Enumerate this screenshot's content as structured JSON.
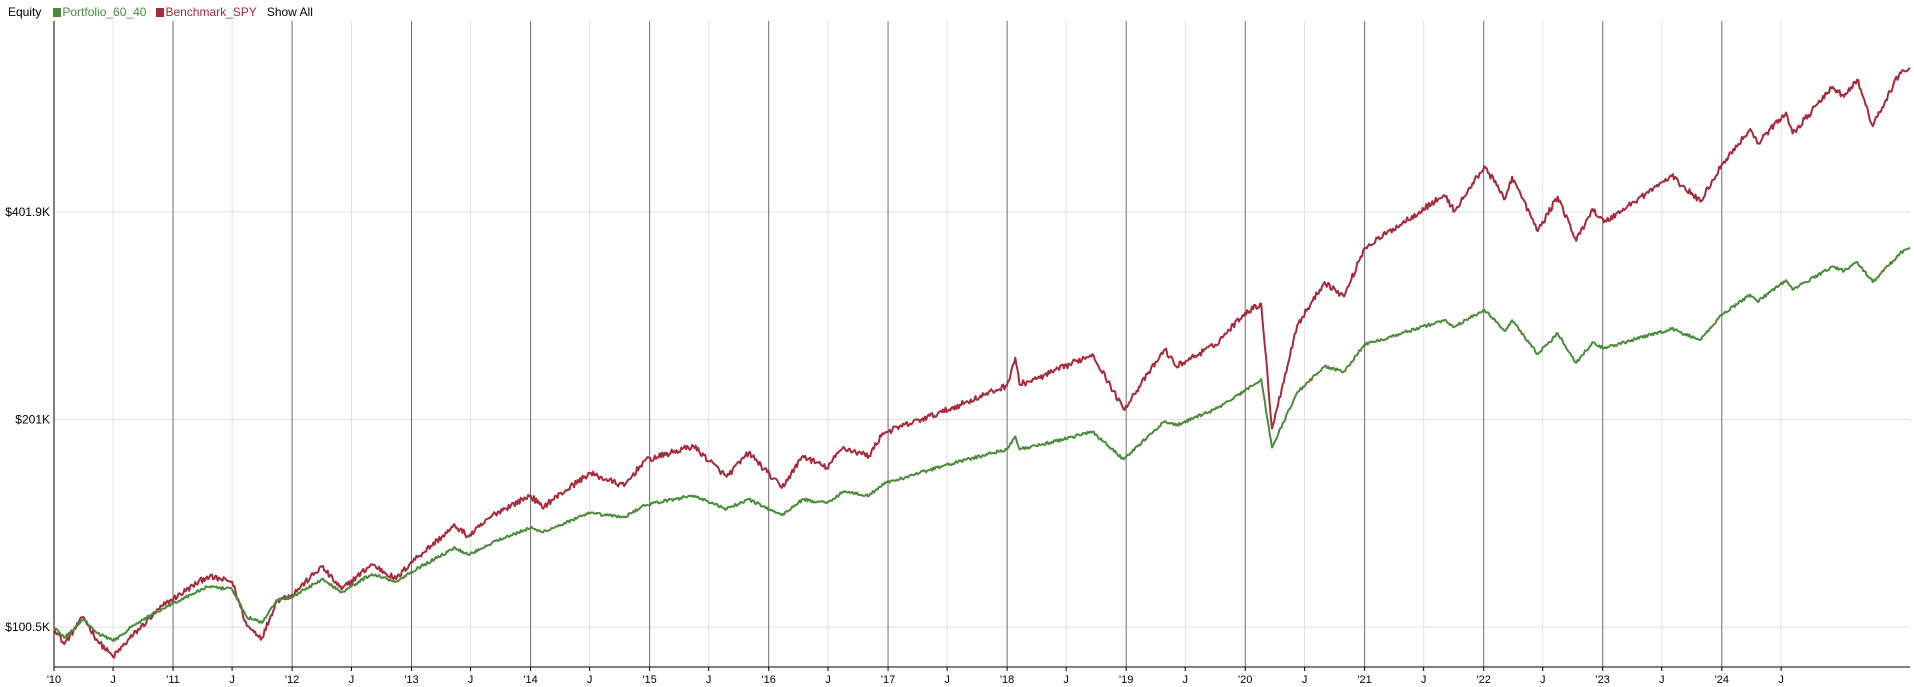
{
  "legend": {
    "title": "Equity",
    "show_all": "Show All"
  },
  "chart_data": {
    "type": "line",
    "title": "Equity",
    "y_scale": "log",
    "ylim": [
      88000,
      760000
    ],
    "y_ticks": [
      {
        "value": 100500,
        "label": "$100.5K"
      },
      {
        "value": 201000,
        "label": "$201K"
      },
      {
        "value": 401900,
        "label": "$401.9K"
      }
    ],
    "x_range": [
      "2010-01-01",
      "2025-07-31"
    ],
    "x_ticks": [
      {
        "date": "2010-01-01",
        "label": "'10",
        "major": true
      },
      {
        "date": "2010-07-01",
        "label": "J",
        "major": false
      },
      {
        "date": "2011-01-01",
        "label": "'11",
        "major": true
      },
      {
        "date": "2011-07-01",
        "label": "J",
        "major": false
      },
      {
        "date": "2012-01-01",
        "label": "'12",
        "major": true
      },
      {
        "date": "2012-07-01",
        "label": "J",
        "major": false
      },
      {
        "date": "2013-01-01",
        "label": "'13",
        "major": true
      },
      {
        "date": "2013-07-01",
        "label": "J",
        "major": false
      },
      {
        "date": "2014-01-01",
        "label": "'14",
        "major": true
      },
      {
        "date": "2014-07-01",
        "label": "J",
        "major": false
      },
      {
        "date": "2015-01-01",
        "label": "'15",
        "major": true
      },
      {
        "date": "2015-07-01",
        "label": "J",
        "major": false
      },
      {
        "date": "2016-01-01",
        "label": "'16",
        "major": true
      },
      {
        "date": "2016-07-01",
        "label": "J",
        "major": false
      },
      {
        "date": "2017-01-01",
        "label": "'17",
        "major": true
      },
      {
        "date": "2017-07-01",
        "label": "J",
        "major": false
      },
      {
        "date": "2018-01-01",
        "label": "'18",
        "major": true
      },
      {
        "date": "2018-07-01",
        "label": "J",
        "major": false
      },
      {
        "date": "2019-01-01",
        "label": "'19",
        "major": true
      },
      {
        "date": "2019-07-01",
        "label": "J",
        "major": false
      },
      {
        "date": "2020-01-01",
        "label": "'20",
        "major": true
      },
      {
        "date": "2020-07-01",
        "label": "J",
        "major": false
      },
      {
        "date": "2021-01-01",
        "label": "'21",
        "major": true
      },
      {
        "date": "2021-07-01",
        "label": "J",
        "major": false
      },
      {
        "date": "2022-01-01",
        "label": "'22",
        "major": true
      },
      {
        "date": "2022-07-01",
        "label": "J",
        "major": false
      },
      {
        "date": "2023-01-01",
        "label": "'23",
        "major": true
      },
      {
        "date": "2023-07-01",
        "label": "J",
        "major": false
      },
      {
        "date": "2024-01-01",
        "label": "'24",
        "major": true
      },
      {
        "date": "2024-07-01",
        "label": "J",
        "major": false
      }
    ],
    "grid": true,
    "legend_position": "top-left",
    "series": [
      {
        "name": "Benchmark_SPY",
        "color": "#a62a3a",
        "points": [
          [
            "2010-01-01",
            100500
          ],
          [
            "2010-02-01",
            95000
          ],
          [
            "2010-04-01",
            104000
          ],
          [
            "2010-05-15",
            96000
          ],
          [
            "2010-07-01",
            91000
          ],
          [
            "2010-09-01",
            98000
          ],
          [
            "2010-12-01",
            108000
          ],
          [
            "2011-04-15",
            119000
          ],
          [
            "2011-07-01",
            117000
          ],
          [
            "2011-08-15",
            101000
          ],
          [
            "2011-10-01",
            97000
          ],
          [
            "2011-11-15",
            110000
          ],
          [
            "2012-01-01",
            112000
          ],
          [
            "2012-04-01",
            123000
          ],
          [
            "2012-06-01",
            114000
          ],
          [
            "2012-09-01",
            124000
          ],
          [
            "2012-11-15",
            118000
          ],
          [
            "2013-01-01",
            125000
          ],
          [
            "2013-05-15",
            141000
          ],
          [
            "2013-06-25",
            136000
          ],
          [
            "2013-09-15",
            147000
          ],
          [
            "2014-01-01",
            156000
          ],
          [
            "2014-02-05",
            150000
          ],
          [
            "2014-07-01",
            168000
          ],
          [
            "2014-10-15",
            161000
          ],
          [
            "2014-12-15",
            175000
          ],
          [
            "2015-05-15",
            184000
          ],
          [
            "2015-08-25",
            166000
          ],
          [
            "2015-11-01",
            180000
          ],
          [
            "2016-02-10",
            160000
          ],
          [
            "2016-04-15",
            178000
          ],
          [
            "2016-06-27",
            171000
          ],
          [
            "2016-08-15",
            183000
          ],
          [
            "2016-11-04",
            178000
          ],
          [
            "2016-12-15",
            192000
          ],
          [
            "2017-06-15",
            206000
          ],
          [
            "2017-12-31",
            225000
          ],
          [
            "2018-01-26",
            247000
          ],
          [
            "2018-02-08",
            226000
          ],
          [
            "2018-04-01",
            230000
          ],
          [
            "2018-09-20",
            250000
          ],
          [
            "2018-12-24",
            208000
          ],
          [
            "2019-04-30",
            254000
          ],
          [
            "2019-06-03",
            240000
          ],
          [
            "2019-10-01",
            258000
          ],
          [
            "2019-12-31",
            287000
          ],
          [
            "2020-02-19",
            296000
          ],
          [
            "2020-03-23",
            195000
          ],
          [
            "2020-06-08",
            275000
          ],
          [
            "2020-08-31",
            318000
          ],
          [
            "2020-10-30",
            303000
          ],
          [
            "2020-12-31",
            356000
          ],
          [
            "2021-09-02",
            425000
          ],
          [
            "2021-10-04",
            403000
          ],
          [
            "2022-01-03",
            468000
          ],
          [
            "2022-03-08",
            420000
          ],
          [
            "2022-03-29",
            452000
          ],
          [
            "2022-06-16",
            377000
          ],
          [
            "2022-08-16",
            423000
          ],
          [
            "2022-10-12",
            365000
          ],
          [
            "2022-11-30",
            406000
          ],
          [
            "2023-01-05",
            388000
          ],
          [
            "2023-07-31",
            453000
          ],
          [
            "2023-10-27",
            416000
          ],
          [
            "2023-12-31",
            470000
          ],
          [
            "2024-03-28",
            530000
          ],
          [
            "2024-04-19",
            505000
          ],
          [
            "2024-07-16",
            560000
          ],
          [
            "2024-08-05",
            522000
          ],
          [
            "2024-12-06",
            610000
          ],
          [
            "2025-01-10",
            590000
          ],
          [
            "2025-02-19",
            625000
          ],
          [
            "2025-04-08",
            535000
          ],
          [
            "2025-06-30",
            640000
          ],
          [
            "2025-07-31",
            650000
          ]
        ]
      },
      {
        "name": "Portfolio_60_40",
        "color": "#4a8b3b",
        "points": [
          [
            "2010-01-01",
            100500
          ],
          [
            "2010-02-01",
            97000
          ],
          [
            "2010-04-01",
            103000
          ],
          [
            "2010-05-15",
            98500
          ],
          [
            "2010-07-01",
            96000
          ],
          [
            "2010-09-01",
            101000
          ],
          [
            "2010-12-01",
            107000
          ],
          [
            "2011-04-15",
            115000
          ],
          [
            "2011-07-01",
            114000
          ],
          [
            "2011-08-15",
            104000
          ],
          [
            "2011-10-01",
            102000
          ],
          [
            "2011-11-15",
            110000
          ],
          [
            "2012-01-01",
            111000
          ],
          [
            "2012-04-01",
            118000
          ],
          [
            "2012-06-01",
            113000
          ],
          [
            "2012-09-01",
            120000
          ],
          [
            "2012-11-15",
            117000
          ],
          [
            "2013-01-01",
            121000
          ],
          [
            "2013-05-15",
            131000
          ],
          [
            "2013-06-25",
            128000
          ],
          [
            "2013-09-15",
            134000
          ],
          [
            "2014-01-01",
            140000
          ],
          [
            "2014-02-05",
            138000
          ],
          [
            "2014-07-01",
            147000
          ],
          [
            "2014-10-15",
            145000
          ],
          [
            "2014-12-15",
            151000
          ],
          [
            "2015-05-15",
            156000
          ],
          [
            "2015-08-25",
            149000
          ],
          [
            "2015-11-01",
            154000
          ],
          [
            "2016-02-10",
            146000
          ],
          [
            "2016-04-15",
            154000
          ],
          [
            "2016-06-27",
            152000
          ],
          [
            "2016-08-15",
            158000
          ],
          [
            "2016-11-04",
            156000
          ],
          [
            "2016-12-15",
            162000
          ],
          [
            "2017-06-15",
            172000
          ],
          [
            "2017-12-31",
            182000
          ],
          [
            "2018-01-26",
            190000
          ],
          [
            "2018-02-08",
            182000
          ],
          [
            "2018-04-01",
            184000
          ],
          [
            "2018-09-20",
            193000
          ],
          [
            "2018-12-24",
            176000
          ],
          [
            "2019-04-30",
            200000
          ],
          [
            "2019-06-03",
            197000
          ],
          [
            "2019-10-01",
            208000
          ],
          [
            "2019-12-31",
            221000
          ],
          [
            "2020-02-19",
            230000
          ],
          [
            "2020-03-23",
            183000
          ],
          [
            "2020-06-08",
            220000
          ],
          [
            "2020-08-31",
            240000
          ],
          [
            "2020-10-30",
            236000
          ],
          [
            "2020-12-31",
            258000
          ],
          [
            "2021-09-02",
            280000
          ],
          [
            "2021-10-04",
            274000
          ],
          [
            "2022-01-03",
            290000
          ],
          [
            "2022-03-08",
            270000
          ],
          [
            "2022-03-29",
            280000
          ],
          [
            "2022-06-16",
            250000
          ],
          [
            "2022-08-16",
            268000
          ],
          [
            "2022-10-12",
            243000
          ],
          [
            "2022-11-30",
            260000
          ],
          [
            "2023-01-05",
            255000
          ],
          [
            "2023-07-31",
            272000
          ],
          [
            "2023-10-27",
            262000
          ],
          [
            "2023-12-31",
            285000
          ],
          [
            "2024-03-28",
            305000
          ],
          [
            "2024-04-19",
            298000
          ],
          [
            "2024-07-16",
            320000
          ],
          [
            "2024-08-05",
            310000
          ],
          [
            "2024-12-06",
            335000
          ],
          [
            "2025-01-10",
            330000
          ],
          [
            "2025-02-19",
            340000
          ],
          [
            "2025-04-08",
            318000
          ],
          [
            "2025-06-30",
            350000
          ],
          [
            "2025-07-31",
            357000
          ]
        ]
      }
    ]
  }
}
